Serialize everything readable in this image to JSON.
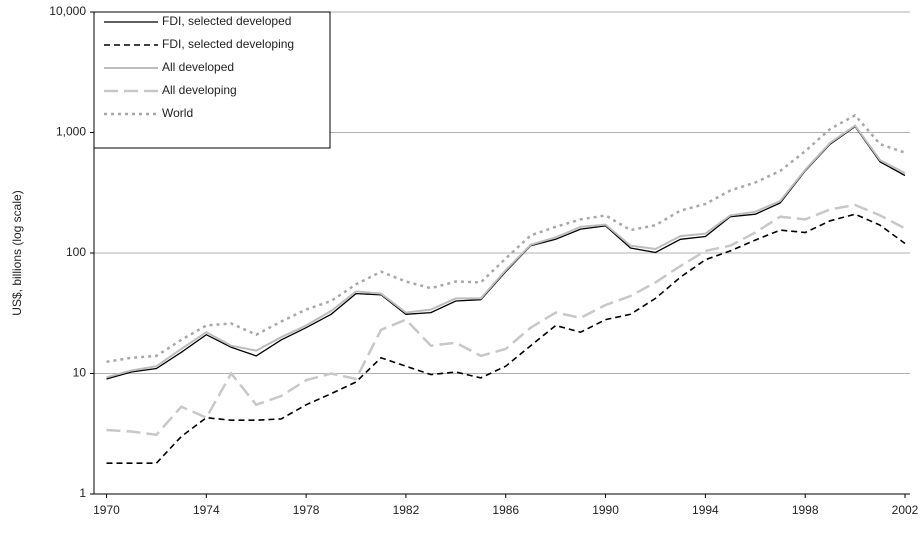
{
  "chart_data": {
    "type": "line",
    "y_label": "US$, billions (log scale)",
    "log_y": true,
    "grid": true,
    "legend": "top-left",
    "x": [
      1970,
      1971,
      1972,
      1973,
      1974,
      1975,
      1976,
      1977,
      1978,
      1979,
      1980,
      1981,
      1982,
      1983,
      1984,
      1985,
      1986,
      1987,
      1988,
      1989,
      1990,
      1991,
      1992,
      1993,
      1994,
      1995,
      1996,
      1997,
      1998,
      1999,
      2000,
      2001,
      2002
    ],
    "xlim": [
      1969.5,
      2002.2
    ],
    "xticks": [
      1970,
      1974,
      1978,
      1982,
      1986,
      1990,
      1994,
      1998,
      2002
    ],
    "ylim": [
      1,
      10000
    ],
    "yticks": [
      1,
      10,
      100,
      {
        "value": 1000,
        "label": "1,000"
      },
      {
        "value": 10000,
        "label": "10,000"
      }
    ],
    "series": [
      {
        "name": "FDI, selected developed",
        "color": "#000000",
        "dash": "none",
        "width": 1.3,
        "values": [
          9,
          10.3,
          11,
          15,
          21,
          16.5,
          14,
          19,
          24,
          31,
          46,
          45,
          31,
          32,
          40,
          41,
          70,
          115,
          130,
          158,
          168,
          110,
          101,
          130,
          137,
          200,
          210,
          260,
          480,
          800,
          1120,
          570,
          440
        ]
      },
      {
        "name": "FDI, selected developing",
        "color": "#000000",
        "dash": "6,4",
        "width": 1.6,
        "values": [
          1.8,
          1.8,
          1.8,
          3,
          4.3,
          4.1,
          4.1,
          4.2,
          5.5,
          6.8,
          8.5,
          13.5,
          11.5,
          9.8,
          10.3,
          9.2,
          11.5,
          17,
          25,
          22,
          28,
          31,
          42,
          63,
          88,
          104,
          128,
          155,
          148,
          185,
          210,
          170,
          120
        ]
      },
      {
        "name": "All developed",
        "color": "#bdbdbd",
        "dash": "none",
        "width": 2,
        "values": [
          9.3,
          10.6,
          11.5,
          16,
          22,
          17,
          15.5,
          20,
          25,
          33,
          48,
          46,
          32,
          34,
          42,
          42,
          72,
          117,
          135,
          165,
          172,
          115,
          108,
          138,
          145,
          205,
          220,
          270,
          490,
          820,
          1140,
          590,
          460
        ]
      },
      {
        "name": "All developing",
        "color": "#c8c8c8",
        "dash": "14,6",
        "width": 2.5,
        "values": [
          3.4,
          3.3,
          3.1,
          5.3,
          4.3,
          10,
          5.5,
          6.5,
          8.8,
          10,
          9,
          23,
          28,
          17,
          18,
          14,
          16,
          24,
          32,
          29,
          37,
          44,
          57,
          78,
          104,
          115,
          148,
          200,
          190,
          230,
          250,
          205,
          160
        ]
      },
      {
        "name": "World",
        "color": "#a8a8a8",
        "dash": "3,4",
        "width": 2.5,
        "values": [
          12.5,
          13.5,
          14,
          19,
          25,
          26,
          21,
          27,
          34,
          40,
          55,
          70,
          58,
          51,
          58,
          57,
          90,
          140,
          165,
          190,
          205,
          155,
          170,
          225,
          255,
          330,
          385,
          480,
          700,
          1070,
          1390,
          800,
          680
        ]
      }
    ]
  }
}
